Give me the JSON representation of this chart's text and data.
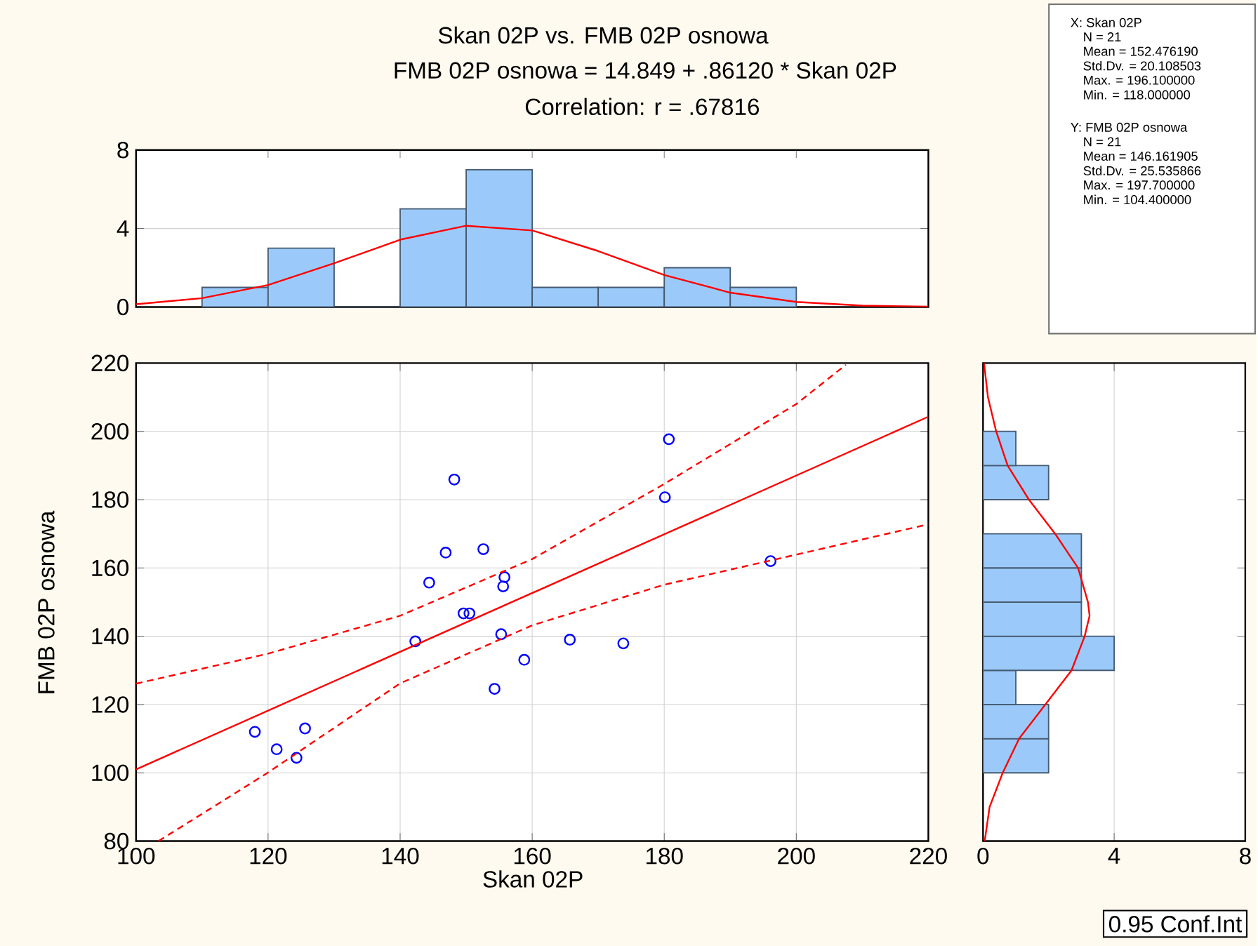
{
  "chart_data": [
    {
      "type": "histogram",
      "title": "Skan 02P vs. FMB 02P osnowa",
      "subtitle": "FMB 02P osnowa = 14.849 + .86120 * Skan 02P",
      "annotations": [
        "Correlation: r = .67816"
      ],
      "xlim": [
        100,
        220
      ],
      "xticks": [
        100,
        120,
        140,
        160,
        180,
        200,
        220
      ],
      "ylim": [
        0,
        8
      ],
      "yticks": [
        0,
        4,
        8
      ],
      "grid": "y",
      "tick_labels": "y",
      "series": [
        {
          "type": "histogram",
          "color": "#9bcafa",
          "bins": [
            110,
            120,
            130,
            140,
            150,
            160,
            170,
            180,
            190,
            200
          ],
          "values": [
            1,
            3,
            0,
            5,
            7,
            1,
            1,
            2,
            1
          ]
        },
        {
          "type": "line",
          "color": "#ff0000",
          "x": [
            100,
            110,
            120,
            130,
            140,
            150,
            160,
            170,
            180,
            190,
            200,
            210,
            220
          ],
          "values": [
            0.14,
            0.45,
            1.12,
            2.23,
            3.43,
            4.14,
            3.9,
            2.85,
            1.63,
            0.73,
            0.26,
            0.07,
            0.02
          ]
        }
      ]
    },
    {
      "type": "other",
      "annotations": [
        "X: Skan 02P",
        "N = 21",
        "Mean = 152.476190",
        "Std.Dv. = 20.108503",
        "Max. = 196.100000",
        "Min. = 118.000000",
        "Y: FMB 02P osnowa",
        "N = 21",
        "Mean = 146.161905",
        "Std.Dv. = 25.535866",
        "Max. = 197.700000",
        "Min. = 104.400000"
      ]
    },
    {
      "type": "scatter",
      "xlabel": "Skan 02P",
      "ylabel": "FMB 02P osnowa",
      "annotations": [
        "0.95 Conf.Int"
      ],
      "xlim": [
        100,
        220
      ],
      "xticks": [
        100,
        120,
        140,
        160,
        180,
        200,
        220
      ],
      "ylim": [
        80,
        220
      ],
      "yticks": [
        80,
        100,
        120,
        140,
        160,
        180,
        200,
        220
      ],
      "grid": true,
      "marker": "circle",
      "series": [
        {
          "type": "scatter",
          "color": "#0000ff",
          "x": [
            118.0,
            121.3,
            124.3,
            125.6,
            142.3,
            144.4,
            146.9,
            148.2,
            149.6,
            150.5,
            152.6,
            154.3,
            155.3,
            155.6,
            155.8,
            158.8,
            165.7,
            173.8,
            180.1,
            180.7,
            196.1
          ],
          "values": [
            112.0,
            106.9,
            104.4,
            113.0,
            138.5,
            155.7,
            164.5,
            185.9,
            146.7,
            146.7,
            165.5,
            124.6,
            140.6,
            154.6,
            157.3,
            133.1,
            139.0,
            137.9,
            180.7,
            197.7,
            162.0
          ]
        },
        {
          "type": "line",
          "color": "#ff0000",
          "marker": "none",
          "line_style": "solid",
          "x": [
            100,
            220
          ],
          "values": [
            101.0,
            204.3
          ]
        },
        {
          "type": "line",
          "color": "#ff0000",
          "marker": "none",
          "line_style": "dashed",
          "x": [
            100,
            120,
            140,
            160,
            180,
            200,
            207.5
          ],
          "values": [
            126.1,
            134.9,
            146.0,
            162.6,
            184.6,
            208.0,
            219.5
          ]
        },
        {
          "type": "line",
          "color": "#ff0000",
          "marker": "none",
          "line_style": "dashed",
          "x": [
            103.4,
            120,
            140,
            160,
            180,
            200,
            220
          ],
          "values": [
            80.0,
            100.1,
            126.2,
            143.2,
            155.1,
            163.9,
            172.8
          ]
        }
      ]
    },
    {
      "type": "histogram",
      "orientation": "horizontal",
      "xlim": [
        0,
        8
      ],
      "xticks": [
        0,
        4,
        8
      ],
      "ylim": [
        80,
        220
      ],
      "yticks": [
        80,
        100,
        120,
        140,
        160,
        180,
        200,
        220
      ],
      "grid": "x",
      "tick_labels": "x",
      "series": [
        {
          "type": "histogram",
          "color": "#9bcafa",
          "bins": [
            100,
            110,
            120,
            130,
            140,
            150,
            160,
            170,
            180,
            190,
            200
          ],
          "values": [
            2,
            2,
            1,
            4,
            3,
            3,
            3,
            0,
            2,
            1
          ]
        },
        {
          "type": "line",
          "color": "#ff0000",
          "x": [
            80,
            90,
            100,
            110,
            120,
            130,
            140,
            146,
            150,
            160,
            170,
            180,
            190,
            200,
            210,
            220
          ],
          "values": [
            0.05,
            0.2,
            0.6,
            1.1,
            1.9,
            2.7,
            3.1,
            3.25,
            3.2,
            2.9,
            2.2,
            1.4,
            0.75,
            0.4,
            0.15,
            0.03
          ]
        }
      ]
    }
  ]
}
